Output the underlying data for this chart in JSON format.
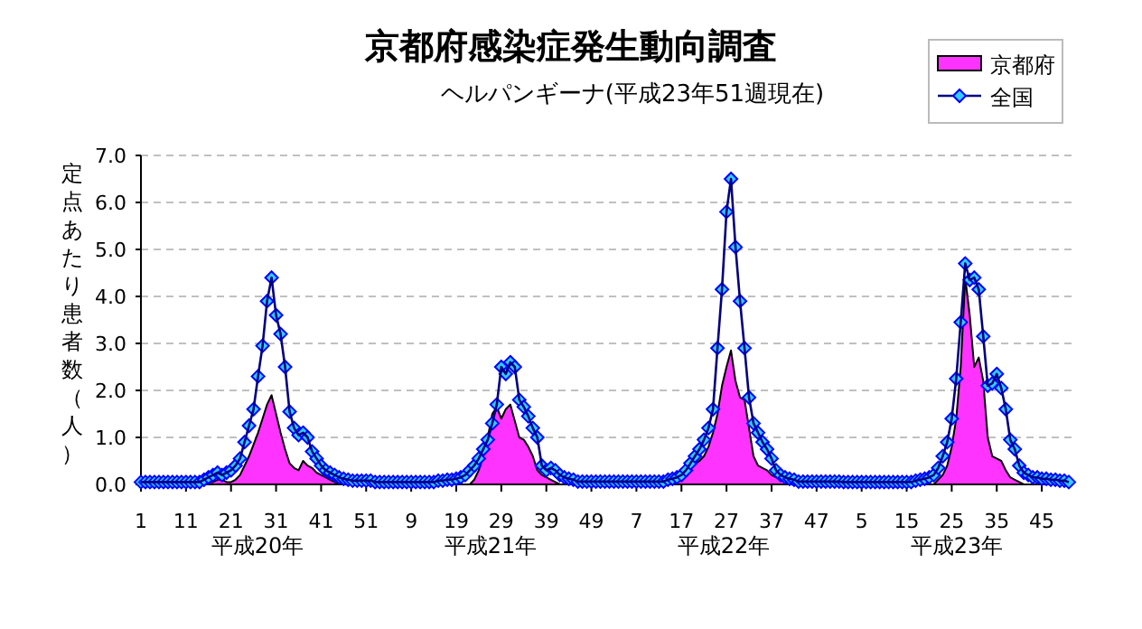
{
  "chart_data": {
    "type": "line",
    "title": "京都府感染症発生動向調査",
    "subtitle": "ヘルパンギーナ(平成23年51週現在)",
    "ylabel": "定点あたり患者数（人）",
    "categories": [
      "1",
      null,
      null,
      null,
      null,
      null,
      null,
      null,
      null,
      null,
      "11",
      null,
      null,
      null,
      null,
      null,
      null,
      null,
      null,
      null,
      "21",
      null,
      null,
      null,
      null,
      null,
      null,
      null,
      null,
      null,
      "31",
      null,
      null,
      null,
      null,
      null,
      null,
      null,
      null,
      null,
      "41",
      null,
      null,
      null,
      null,
      null,
      null,
      null,
      null,
      null,
      "51",
      null,
      null,
      null,
      null,
      null,
      null,
      null,
      null,
      null,
      "9",
      null,
      null,
      null,
      null,
      null,
      null,
      null,
      null,
      null,
      "19",
      null,
      null,
      null,
      null,
      null,
      null,
      null,
      null,
      null,
      "29",
      null,
      null,
      null,
      null,
      null,
      null,
      null,
      null,
      null,
      "39",
      null,
      null,
      null,
      null,
      null,
      null,
      null,
      null,
      null,
      "49",
      null,
      null,
      null,
      null,
      null,
      null,
      null,
      null,
      null,
      "7",
      null,
      null,
      null,
      null,
      null,
      null,
      null,
      null,
      null,
      "17",
      null,
      null,
      null,
      null,
      null,
      null,
      null,
      null,
      null,
      "27",
      null,
      null,
      null,
      null,
      null,
      null,
      null,
      null,
      null,
      "37",
      null,
      null,
      null,
      null,
      null,
      null,
      null,
      null,
      null,
      "47",
      null,
      null,
      null,
      null,
      null,
      null,
      null,
      null,
      null,
      "5",
      null,
      null,
      null,
      null,
      null,
      null,
      null,
      null,
      null,
      "15",
      null,
      null,
      null,
      null,
      null,
      null,
      null,
      null,
      null,
      "25",
      null,
      null,
      null,
      null,
      null,
      null,
      null,
      null,
      null,
      "35",
      null,
      null,
      null,
      null,
      null,
      null,
      null,
      null,
      null,
      "45",
      null,
      null,
      null,
      null,
      null,
      null
    ],
    "ylim": [
      0,
      7
    ],
    "yticks": [
      {
        "value": 0,
        "label": "0.0"
      },
      {
        "value": 1,
        "label": "1.0"
      },
      {
        "value": 2,
        "label": "2.0"
      },
      {
        "value": 3,
        "label": "3.0"
      },
      {
        "value": 4,
        "label": "4.0"
      },
      {
        "value": 5,
        "label": "5.0"
      },
      {
        "value": 6,
        "label": "6.0"
      },
      {
        "value": 7,
        "label": "7.0"
      }
    ],
    "grid": "y",
    "legend": "top right",
    "annotations": [
      "平成20年",
      "平成21年",
      "平成22年",
      "平成23年"
    ],
    "series": [
      {
        "name": "京都府",
        "type": "area",
        "color": "#ff33ff",
        "values": [
          0,
          0,
          0,
          0,
          0,
          0,
          0,
          0,
          0,
          0,
          0,
          0,
          0,
          0,
          0,
          0.05,
          0.05,
          0.1,
          0.1,
          0.05,
          0.05,
          0.1,
          0.2,
          0.4,
          0.6,
          0.85,
          1.1,
          1.4,
          1.7,
          1.9,
          1.5,
          1.1,
          0.75,
          0.45,
          0.35,
          0.3,
          0.5,
          0.4,
          0.35,
          0.25,
          0.2,
          0.15,
          0.1,
          0.05,
          0,
          0,
          0,
          0,
          0,
          0,
          0,
          0,
          0,
          0,
          0,
          0,
          0,
          0,
          0,
          0,
          0,
          0,
          0,
          0,
          0,
          0,
          0,
          0,
          0,
          0,
          0,
          0,
          0,
          0,
          0.1,
          0.3,
          0.6,
          1.0,
          1.5,
          1.65,
          1.4,
          1.6,
          1.7,
          1.35,
          1.0,
          0.95,
          0.8,
          0.6,
          0.3,
          0.2,
          0.15,
          0.1,
          0.05,
          0,
          0,
          0,
          0,
          0,
          0,
          0,
          0,
          0,
          0,
          0,
          0.05,
          0.05,
          0.05,
          0.05,
          0.05,
          0.05,
          0.05,
          0.05,
          0.05,
          0.05,
          0.05,
          0.05,
          0.05,
          0.05,
          0.05,
          0.1,
          0.3,
          0.35,
          0.4,
          0.45,
          0.5,
          0.6,
          0.8,
          1.1,
          1.5,
          2.1,
          2.5,
          2.85,
          2.2,
          1.85,
          1.8,
          1.2,
          0.6,
          0.4,
          0.35,
          0.3,
          0.2,
          0.15,
          0.1,
          0.05,
          0,
          0,
          0,
          0,
          0,
          0,
          0,
          0,
          0,
          0,
          0,
          0,
          0,
          0,
          0,
          0,
          0,
          0,
          0,
          0,
          0,
          0,
          0,
          0,
          0,
          0,
          0,
          0,
          0,
          0,
          0,
          0,
          0,
          0.1,
          0.2,
          0.4,
          0.8,
          1.4,
          2.5,
          4.4,
          3.6,
          2.5,
          2.7,
          2.2,
          1.0,
          0.6,
          0.55,
          0.5,
          0.3,
          0.15,
          0.1,
          0.05,
          0,
          0,
          0,
          0,
          0,
          0,
          0,
          0,
          0,
          0,
          0
        ]
      },
      {
        "name": "全国",
        "marker": "diamond",
        "color": "#000080",
        "values": [
          0.05,
          0.05,
          0.05,
          0.05,
          0.05,
          0.05,
          0.05,
          0.05,
          0.05,
          0.05,
          0.05,
          0.05,
          0.05,
          0.05,
          0.1,
          0.15,
          0.2,
          0.25,
          0.2,
          0.25,
          0.3,
          0.4,
          0.55,
          0.9,
          1.25,
          1.6,
          2.3,
          2.95,
          3.9,
          4.4,
          3.6,
          3.2,
          2.5,
          1.55,
          1.2,
          1.05,
          1.1,
          1.0,
          0.7,
          0.55,
          0.4,
          0.3,
          0.25,
          0.2,
          0.15,
          0.12,
          0.1,
          0.08,
          0.08,
          0.08,
          0.08,
          0.08,
          0.05,
          0.05,
          0.05,
          0.05,
          0.05,
          0.05,
          0.05,
          0.05,
          0.05,
          0.05,
          0.05,
          0.05,
          0.05,
          0.05,
          0.08,
          0.08,
          0.1,
          0.1,
          0.12,
          0.15,
          0.2,
          0.3,
          0.4,
          0.55,
          0.75,
          0.95,
          1.3,
          1.7,
          2.5,
          2.35,
          2.6,
          2.5,
          1.8,
          1.65,
          1.45,
          1.2,
          1.0,
          0.4,
          0.3,
          0.35,
          0.3,
          0.2,
          0.15,
          0.12,
          0.1,
          0.06,
          0.06,
          0.06,
          0.06,
          0.06,
          0.06,
          0.06,
          0.06,
          0.06,
          0.06,
          0.06,
          0.06,
          0.06,
          0.06,
          0.06,
          0.06,
          0.06,
          0.06,
          0.06,
          0.06,
          0.1,
          0.12,
          0.15,
          0.2,
          0.3,
          0.45,
          0.6,
          0.75,
          0.95,
          1.2,
          1.6,
          2.9,
          4.15,
          5.8,
          6.5,
          5.05,
          3.9,
          2.9,
          1.85,
          1.3,
          1.1,
          0.9,
          0.75,
          0.55,
          0.3,
          0.2,
          0.15,
          0.12,
          0.1,
          0.06,
          0.06,
          0.06,
          0.06,
          0.06,
          0.06,
          0.06,
          0.06,
          0.06,
          0.06,
          0.05,
          0.05,
          0.05,
          0.05,
          0.05,
          0.05,
          0.05,
          0.05,
          0.05,
          0.05,
          0.05,
          0.05,
          0.05,
          0.05,
          0.05,
          0.05,
          0.08,
          0.1,
          0.12,
          0.15,
          0.2,
          0.35,
          0.6,
          0.9,
          1.4,
          2.25,
          3.45,
          4.7,
          4.35,
          4.4,
          4.15,
          3.15,
          2.1,
          2.15,
          2.35,
          2.05,
          1.6,
          0.95,
          0.75,
          0.4,
          0.25,
          0.2,
          0.15,
          0.15,
          0.12,
          0.12,
          0.1,
          0.1,
          0.08,
          0.08,
          0.05
        ]
      }
    ]
  }
}
